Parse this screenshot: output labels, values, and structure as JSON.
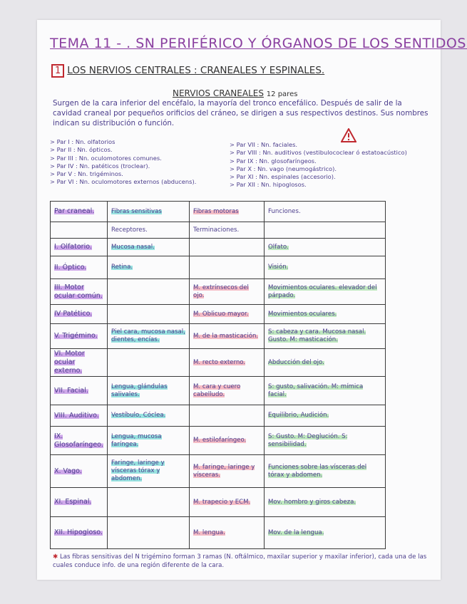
{
  "header": {
    "title": "TEMA 11 - . SN PERIFÉRICO Y ÓRGANOS DE LOS SENTIDOS.",
    "section_number": "1",
    "section_title": "LOS NERVIOS CENTRALES : CRANEALES Y ESPINALES.",
    "subtitle": "NERVIOS CRANEALES",
    "subtitle_count": "12 pares",
    "intro": "Surgen de la cara inferior del encéfalo, la mayoría del tronco encefálico. Después de salir de la cavidad craneal por pequeños orificios del cráneo, se dirigen a sus respectivos destinos. Sus nombres indican su distribución o función."
  },
  "pairs_left": [
    "> Par I : Nn. olfatorios",
    "> Par II : Nn. ópticos.",
    "> Par III : Nn. oculomotores comunes.",
    "> Par IV : Nn. patéticos (troclear).",
    "> Par V : Nn. trigéminos.",
    "> Par VI : Nn. oculomotores externos (abducens)."
  ],
  "pairs_right": [
    "> Par VII : Nn. faciales.",
    "> Par VIII : Nn. auditivos (vestibulococlear ó estatoacústico)",
    "> Par IX : Nn. glosofaríngeos.",
    "> Par X : Nn. vago (neumogástrico).",
    "> Par XI : Nn. espinales (accesorio).",
    "> Par XII : Nn. hipoglosos."
  ],
  "warning_icon": "warning-triangle-icon",
  "colors": {
    "ink": "#4b3d8c",
    "title": "#8a3fa0",
    "accent_red": "#c0282f",
    "hl_purple": "#cfa8ea",
    "hl_cyan": "#98e3e0",
    "hl_pink": "#f5bcc5",
    "hl_green": "#bfe8bf"
  },
  "table": {
    "headers": [
      "Par craneal.",
      "Fibras sensitivas",
      "Fibras motoras",
      "Funciones."
    ],
    "subheaders": [
      "",
      "Receptores.",
      "Terminaciones.",
      ""
    ],
    "rows": [
      [
        "I. Olfatorio.",
        "Mucosa nasal.",
        "",
        "Olfato."
      ],
      [
        "II. Óptico.",
        "Retina.",
        "",
        "Visión."
      ],
      [
        "III. Motor ocular común.",
        "",
        "M. extrínsecos del ojo.",
        "Movimientos oculares. elevador del párpado."
      ],
      [
        "IV Patético.",
        "",
        "M. Oblicuo mayor.",
        "Movimientos oculares."
      ],
      [
        "V. Trigémino.",
        "Piel cara, mucosa nasal, dientes, encías.",
        "M. de la masticación.",
        "S: cabeza y cara. Mucosa nasal. Gusto. M: masticación."
      ],
      [
        "VI. Motor ocular externo.",
        "",
        "M. recto externo.",
        "Abducción del ojo."
      ],
      [
        "VII. Facial.",
        "Lengua, glándulas salivales.",
        "M. cara y cuero cabelludo.",
        "S: gusto, salivación. M: mímica facial."
      ],
      [
        "VIII. Auditivo.",
        "Vestíbulo, Cóclea.",
        "",
        "Equilibrio, Audición."
      ],
      [
        "IX. Glosofaríngeo.",
        "Lengua, mucosa faríngea.",
        "M. estilofaríngeo.",
        "S: Gusto. M: Deglución. S: sensibilidad."
      ],
      [
        "X. Vago.",
        "Faringe, laringe y vísceras tórax y abdomen.",
        "M. faringe, laringe y vísceras.",
        "Funciones sobre las vísceras del tórax y abdomen."
      ],
      [
        "XI. Espinal.",
        "",
        "M. trapecio y ECM.",
        "Mov. hombro y giros cabeza."
      ],
      [
        "XII. Hipogloso.",
        "",
        "M. lengua.",
        "Mov. de la lengua."
      ]
    ]
  },
  "footnote": "Las fibras sensitivas del N trigémino forman 3 ramas (N. oftálmico, maxilar superior y maxilar inferior), cada una de las cuales conduce info. de una región diferente de la cara."
}
